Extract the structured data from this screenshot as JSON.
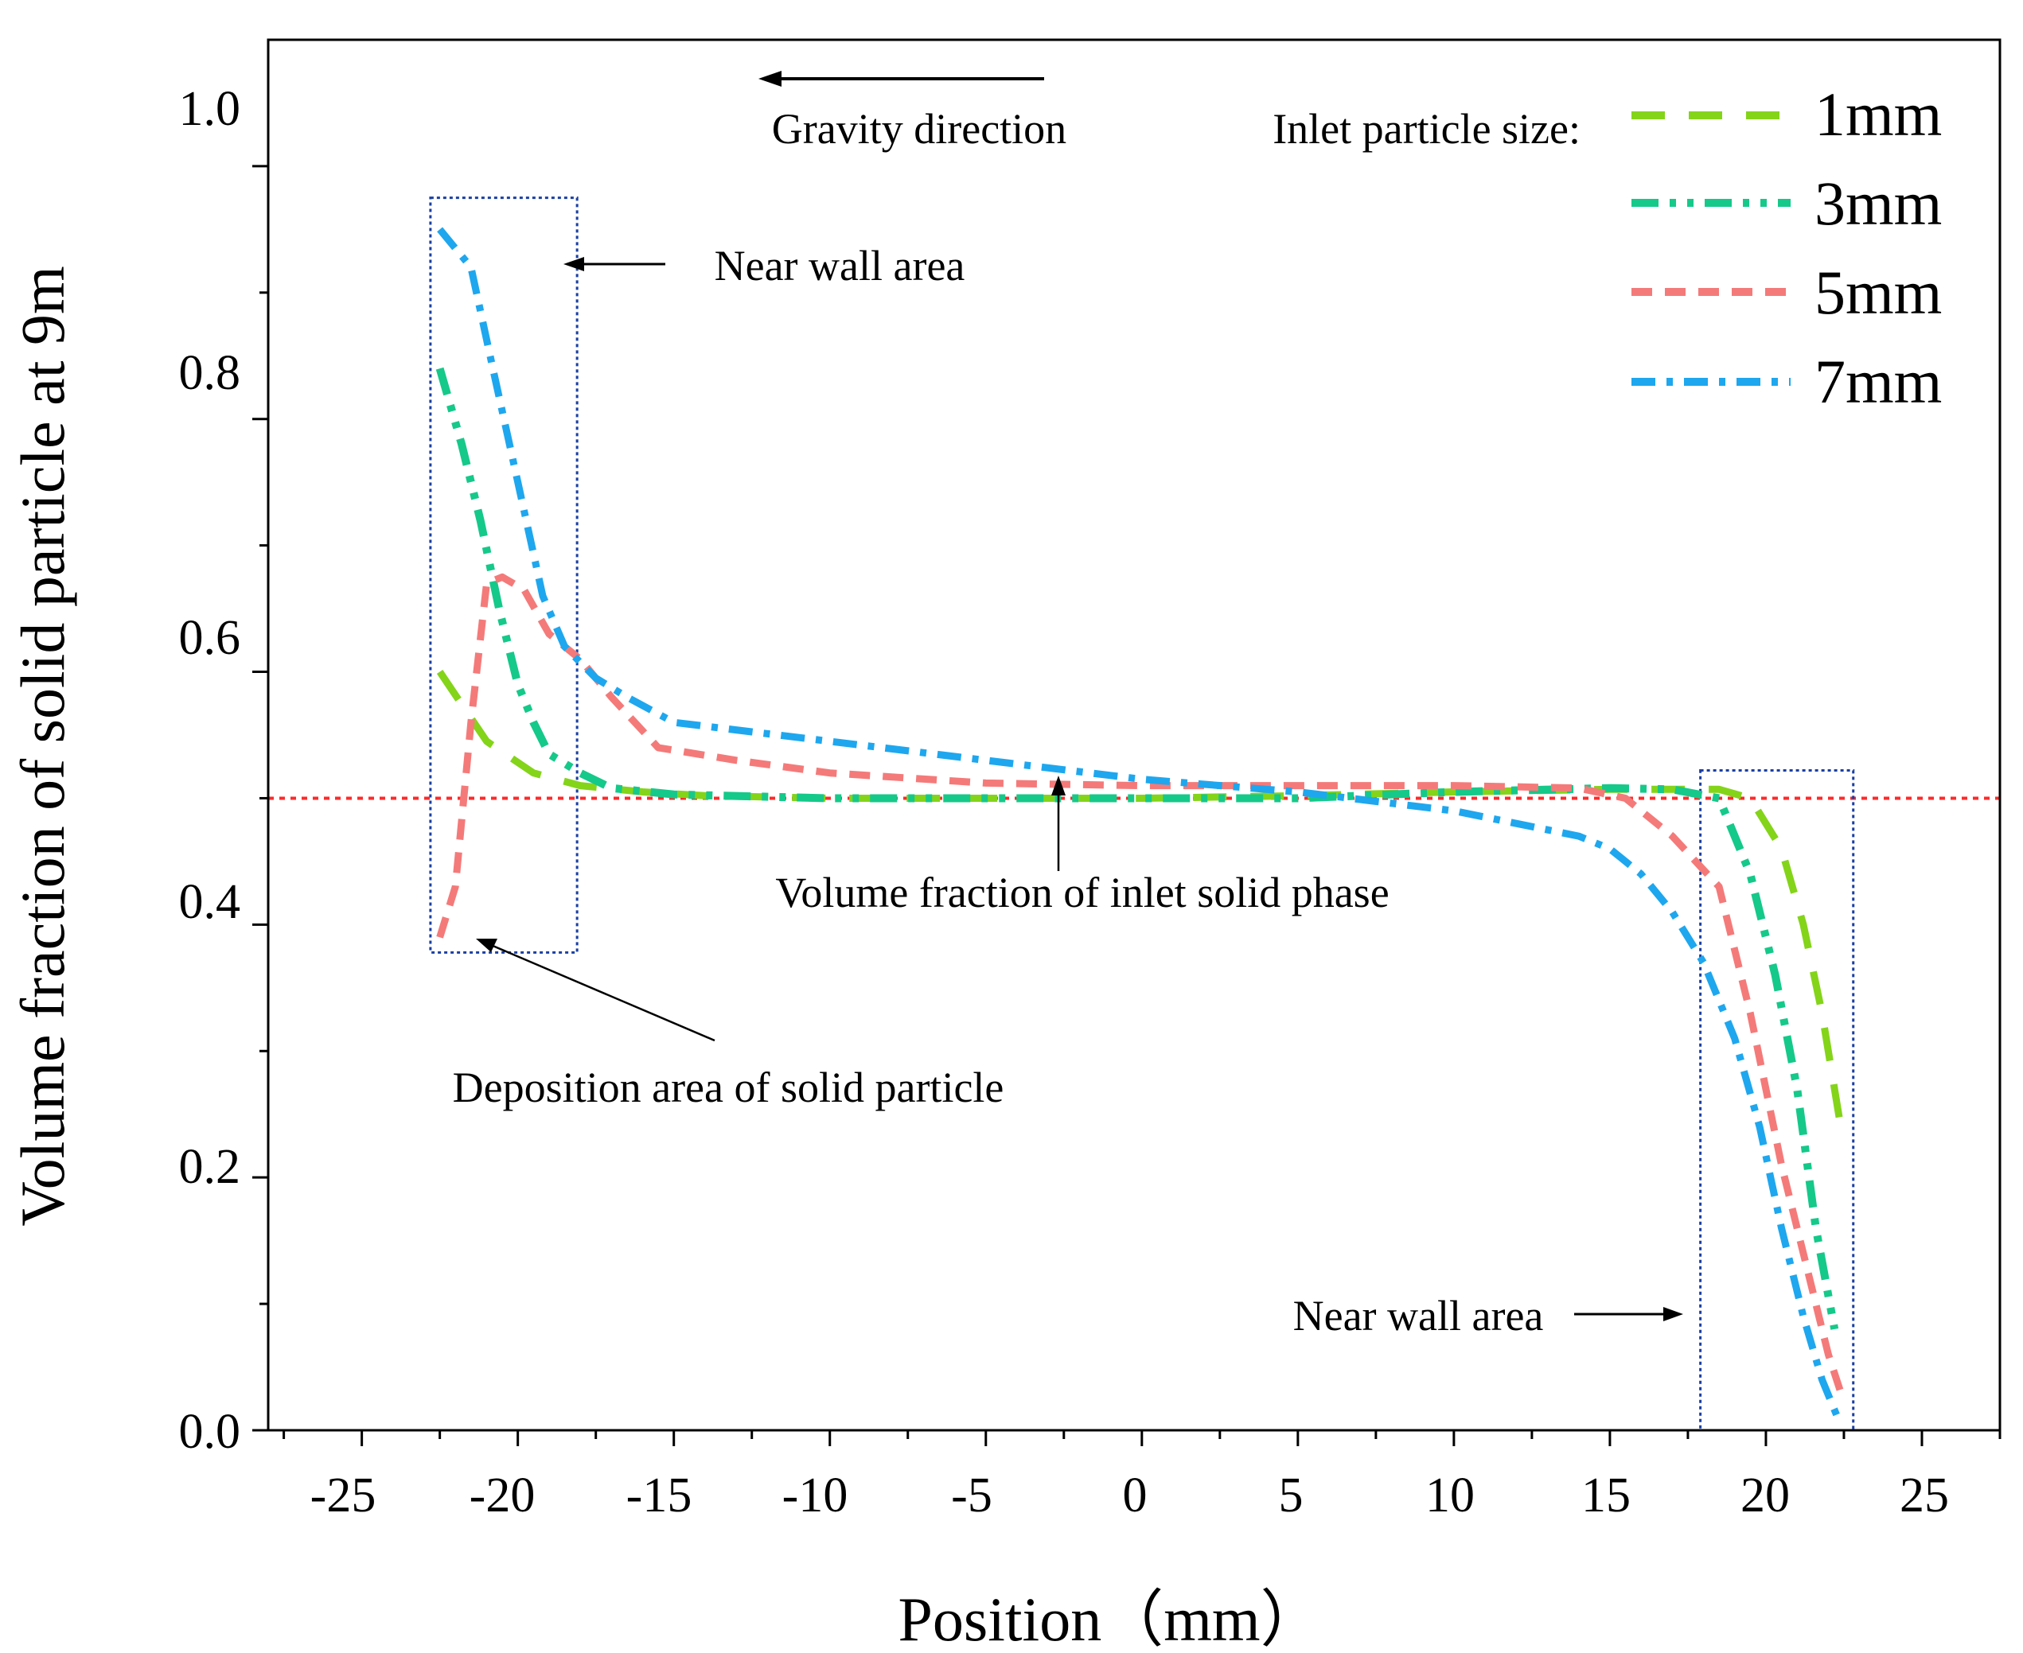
{
  "chart_data": {
    "type": "line",
    "title": "",
    "xlabel": "Position（mm）",
    "ylabel": "Volume fraction of solid particle at 9m",
    "xlim": [
      -28,
      27.5
    ],
    "ylim": [
      0,
      1.1
    ],
    "x_ticks": [
      -25,
      -20,
      -15,
      -10,
      -5,
      0,
      5,
      10,
      15,
      20,
      25
    ],
    "x_tick_labels": [
      "-25",
      "-20",
      "-15",
      "-10",
      "-5",
      "0",
      "5",
      "10",
      "15",
      "20",
      "25"
    ],
    "y_ticks": [
      0.0,
      0.2,
      0.4,
      0.6,
      0.8,
      1.0
    ],
    "y_tick_labels": [
      "0.0",
      "0.2",
      "0.4",
      "0.6",
      "0.8",
      "1.0"
    ],
    "grid": false,
    "legend": {
      "position": "top-right",
      "title": "Inlet particle size:",
      "entries": [
        "1mm",
        "3mm",
        "5mm",
        "7mm"
      ]
    },
    "reference_line": {
      "y": 0.5,
      "color": "#ff2a2a",
      "label": "Volume fraction of inlet solid phase"
    },
    "series": [
      {
        "name": "1mm",
        "color": "#84d41a",
        "x": [
          -22.5,
          -21,
          -19.5,
          -18,
          -16,
          -14,
          -10,
          -5,
          0,
          5,
          10,
          15,
          17,
          18.5,
          19.5,
          20.5,
          21.2,
          21.8,
          22.4
        ],
        "y": [
          0.6,
          0.545,
          0.52,
          0.51,
          0.505,
          0.502,
          0.5,
          0.5,
          0.5,
          0.502,
          0.505,
          0.507,
          0.507,
          0.507,
          0.5,
          0.46,
          0.4,
          0.33,
          0.24
        ]
      },
      {
        "name": "3mm",
        "color": "#15c98a",
        "x": [
          -22.5,
          -21.8,
          -21.2,
          -20.6,
          -20,
          -19.5,
          -19,
          -18,
          -17,
          -15,
          -10,
          -5,
          0,
          5,
          10,
          15,
          17,
          18.5,
          19.5,
          20.3,
          21,
          21.6,
          22.2
        ],
        "y": [
          0.84,
          0.78,
          0.72,
          0.65,
          0.59,
          0.56,
          0.535,
          0.52,
          0.508,
          0.503,
          0.5,
          0.5,
          0.5,
          0.5,
          0.505,
          0.508,
          0.507,
          0.5,
          0.44,
          0.36,
          0.27,
          0.16,
          0.08
        ]
      },
      {
        "name": "5mm",
        "color": "#f47a7a",
        "x": [
          -22.5,
          -22,
          -21.5,
          -21,
          -20.5,
          -19.8,
          -19,
          -18,
          -17,
          -15.5,
          -13,
          -10,
          -5,
          0,
          5,
          10,
          14,
          15.5,
          17,
          18.5,
          19.5,
          20.5,
          21.3,
          22,
          22.4
        ],
        "y": [
          0.39,
          0.43,
          0.56,
          0.67,
          0.675,
          0.665,
          0.63,
          0.61,
          0.58,
          0.54,
          0.53,
          0.52,
          0.512,
          0.51,
          0.51,
          0.51,
          0.508,
          0.5,
          0.47,
          0.43,
          0.33,
          0.21,
          0.13,
          0.06,
          0.03
        ]
      },
      {
        "name": "7mm",
        "color": "#1ea7ee",
        "x": [
          -22.5,
          -21.5,
          -20.8,
          -20,
          -19.2,
          -18.5,
          -17.5,
          -16.5,
          -15,
          -10,
          -5,
          0,
          5,
          10,
          12,
          14,
          15,
          16,
          17,
          18,
          19,
          19.8,
          20.5,
          21.2,
          21.8,
          22.3
        ],
        "y": [
          0.95,
          0.92,
          0.84,
          0.75,
          0.66,
          0.62,
          0.595,
          0.58,
          0.56,
          0.545,
          0.53,
          0.515,
          0.505,
          0.49,
          0.48,
          0.47,
          0.46,
          0.44,
          0.41,
          0.37,
          0.31,
          0.24,
          0.16,
          0.09,
          0.04,
          0.01
        ]
      }
    ],
    "annotations": [
      "Gravity direction",
      "Near wall area",
      "Deposition area of solid particle",
      "Volume fraction of inlet solid phase",
      "Near wall area"
    ],
    "highlight_boxes": [
      {
        "name": "left-near-wall-box",
        "x_range": [
          -22.8,
          -18.1
        ],
        "y_range": [
          0.378,
          0.975
        ]
      },
      {
        "name": "right-near-wall-box",
        "x_range": [
          17.9,
          22.8
        ],
        "y_range": [
          0.0,
          0.522
        ]
      }
    ]
  }
}
